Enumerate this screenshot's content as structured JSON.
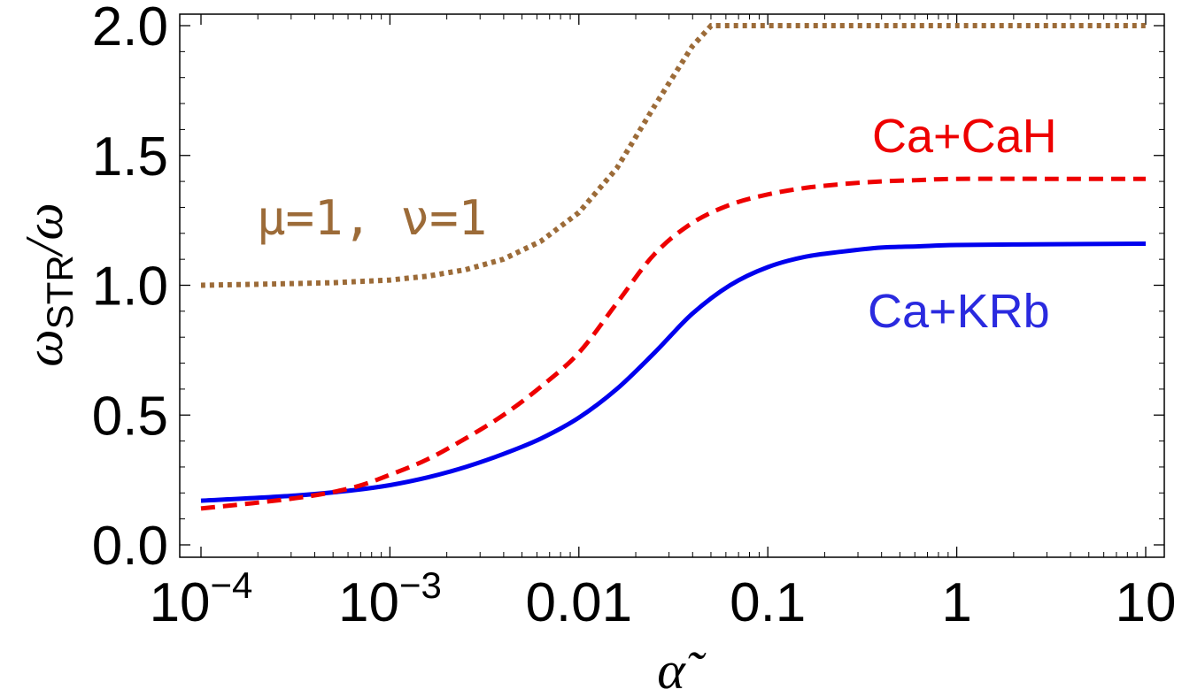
{
  "chart_data": {
    "type": "line",
    "title": "",
    "xlabel": "α̃",
    "ylabel_main": "ω",
    "ylabel_sub": "STR",
    "ylabel_tail": "/ω",
    "xscale": "log",
    "xlim_log10": [
      -4,
      1
    ],
    "ylim": [
      0.0,
      2.0
    ],
    "x_ticks": [
      {
        "value": -4,
        "base": "10",
        "exp": "−4"
      },
      {
        "value": -3,
        "base": "10",
        "exp": "−3"
      },
      {
        "value": -2,
        "base": "0.01",
        "exp": ""
      },
      {
        "value": -1,
        "base": "0.1",
        "exp": ""
      },
      {
        "value": 0,
        "base": "1",
        "exp": ""
      },
      {
        "value": 1,
        "base": "10",
        "exp": ""
      }
    ],
    "y_ticks": [
      {
        "value": 0.0,
        "label": "0.0"
      },
      {
        "value": 0.5,
        "label": "0.5"
      },
      {
        "value": 1.0,
        "label": "1.0"
      },
      {
        "value": 1.5,
        "label": "1.5"
      },
      {
        "value": 2.0,
        "label": "2.0"
      }
    ],
    "series": [
      {
        "name": "Ca+KRb",
        "color": "#0000ee",
        "style": "solid",
        "x_log10": [
          -4.0,
          -3.5,
          -3.2,
          -3.0,
          -2.8,
          -2.6,
          -2.4,
          -2.2,
          -2.0,
          -1.8,
          -1.6,
          -1.4,
          -1.2,
          -1.0,
          -0.8,
          -0.6,
          -0.4,
          -0.2,
          0.0,
          0.5,
          1.0
        ],
        "y": [
          0.17,
          0.19,
          0.21,
          0.23,
          0.26,
          0.3,
          0.35,
          0.41,
          0.49,
          0.6,
          0.74,
          0.89,
          1.0,
          1.07,
          1.11,
          1.13,
          1.145,
          1.15,
          1.155,
          1.158,
          1.16
        ]
      },
      {
        "name": "Ca+CaH",
        "color": "#ee0000",
        "style": "dashed",
        "x_log10": [
          -4.0,
          -3.5,
          -3.2,
          -3.0,
          -2.8,
          -2.6,
          -2.4,
          -2.2,
          -2.0,
          -1.8,
          -1.6,
          -1.4,
          -1.2,
          -1.0,
          -0.8,
          -0.6,
          -0.4,
          -0.2,
          0.0,
          0.5,
          1.0
        ],
        "y": [
          0.14,
          0.18,
          0.22,
          0.27,
          0.33,
          0.41,
          0.5,
          0.61,
          0.74,
          0.93,
          1.12,
          1.24,
          1.31,
          1.35,
          1.375,
          1.39,
          1.4,
          1.405,
          1.41,
          1.41,
          1.41
        ]
      },
      {
        "name": "μ=1, ν=1",
        "color": "#9c6b38",
        "style": "dotted",
        "x_log10": [
          -4.0,
          -3.6,
          -3.3,
          -3.0,
          -2.8,
          -2.6,
          -2.4,
          -2.2,
          -2.0,
          -1.8,
          -1.6,
          -1.4,
          -1.3,
          -1.2,
          -1.0,
          -0.5,
          0.0,
          0.5,
          1.0
        ],
        "y": [
          1.0,
          1.005,
          1.01,
          1.02,
          1.035,
          1.06,
          1.1,
          1.17,
          1.28,
          1.45,
          1.69,
          1.92,
          2.0,
          2.0,
          2.0,
          2.0,
          2.0,
          2.0,
          2.0
        ]
      }
    ],
    "annotations": [
      {
        "text": "Ca+CaH",
        "color": "#ee0000"
      },
      {
        "text": "μ=1, ν=1",
        "color": "#9c6b38"
      },
      {
        "text": "Ca+KRb",
        "color": "#2a2adf"
      }
    ]
  }
}
